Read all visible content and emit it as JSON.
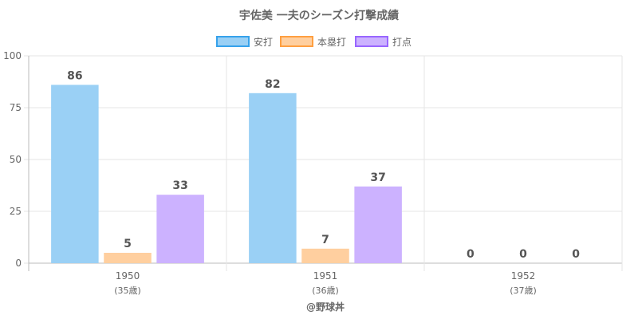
{
  "chart_data": {
    "type": "bar",
    "title": "宇佐美 一夫のシーズン打撃成績",
    "categories": [
      "1950",
      "1951",
      "1952"
    ],
    "category_sublabels": [
      "(35歳)",
      "(36歳)",
      "(37歳)"
    ],
    "series": [
      {
        "name": "安打",
        "values": [
          86,
          82,
          0
        ],
        "fill": "#9ad0f5",
        "stroke": "#36a2eb"
      },
      {
        "name": "本塁打",
        "values": [
          5,
          7,
          0
        ],
        "fill": "#ffcf9f",
        "stroke": "#ff9f40"
      },
      {
        "name": "打点",
        "values": [
          33,
          37,
          0
        ],
        "fill": "#ccb2ff",
        "stroke": "#9966ff"
      }
    ],
    "ylim": [
      0,
      100
    ],
    "yticks": [
      0,
      25,
      50,
      75,
      100
    ],
    "grid": true,
    "legend_position": "top"
  },
  "credit": "@野球丼"
}
